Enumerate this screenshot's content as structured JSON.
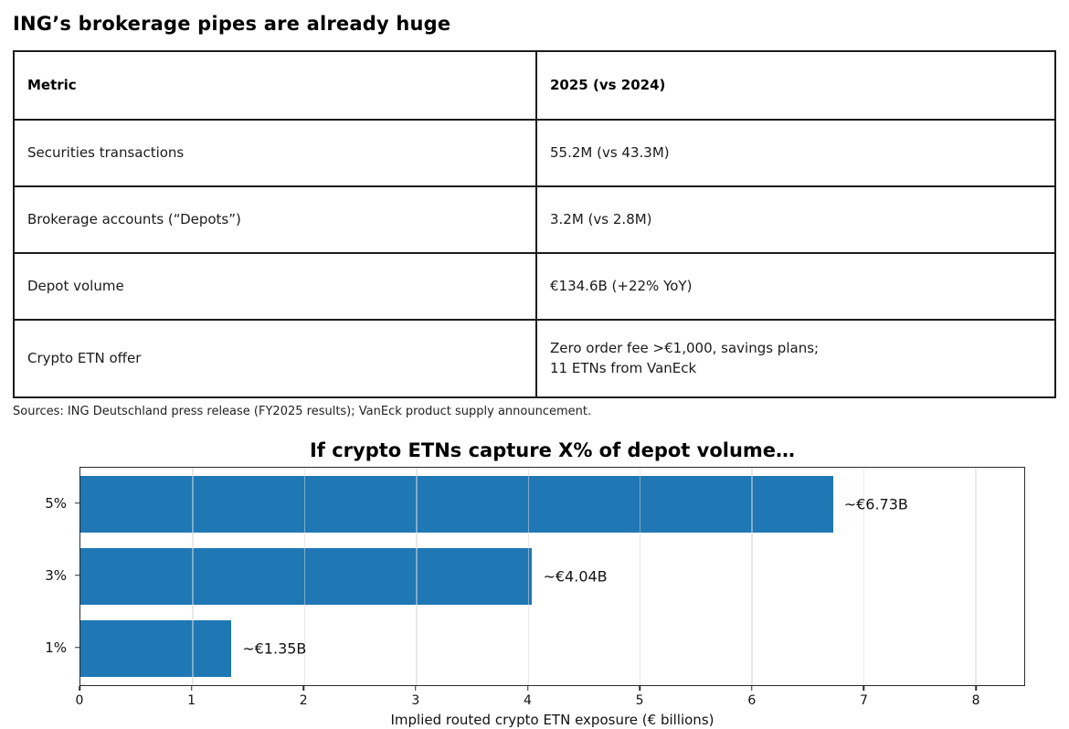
{
  "header": {
    "title": "ING’s brokerage pipes are already huge"
  },
  "table": {
    "columns": [
      "Metric",
      "2025 (vs 2024)"
    ],
    "rows": [
      {
        "metric": "Securities transactions",
        "value": "55.2M (vs 43.3M)"
      },
      {
        "metric": "Brokerage accounts (“Depots”)",
        "value": "3.2M (vs 2.8M)"
      },
      {
        "metric": "Depot volume",
        "value": "€134.6B (+22% YoY)"
      },
      {
        "metric": "Crypto ETN offer",
        "value": "Zero order fee >€1,000, savings plans;\n11 ETNs from VanEck"
      }
    ]
  },
  "sources": "Sources: ING Deutschland press release (FY2025 results); VanEck product supply announcement.",
  "chart_data": {
    "type": "bar",
    "orientation": "horizontal",
    "title": "If crypto ETNs capture X% of depot volume…",
    "categories": [
      "5%",
      "3%",
      "1%"
    ],
    "values": [
      6.73,
      4.04,
      1.35
    ],
    "bar_labels": [
      "~€6.73B",
      "~€4.04B",
      "~€1.35B"
    ],
    "xlabel": "Implied routed crypto ETN exposure (€ billions)",
    "xticks": [
      0,
      1,
      2,
      3,
      4,
      5,
      6,
      7,
      8
    ],
    "xlim": [
      0,
      8.44
    ],
    "bar_color": "#1f77b4",
    "grid": true,
    "legend": "none"
  }
}
